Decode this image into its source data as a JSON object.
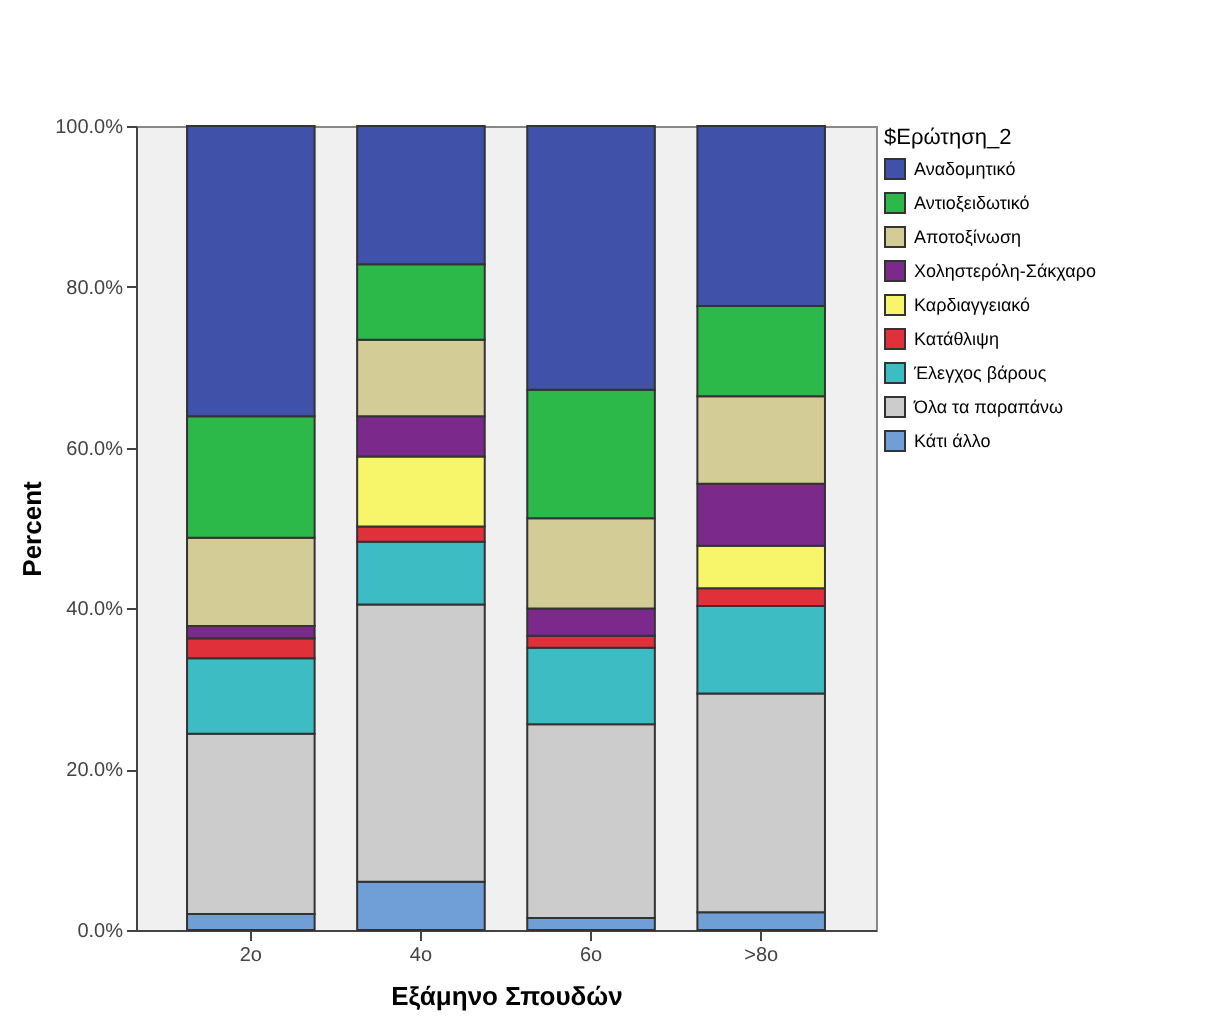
{
  "chart_data": {
    "type": "bar",
    "stacked": true,
    "xlabel": "Εξάμηνο Σπουδών",
    "ylabel": "Percent",
    "legend_title": "$Ερώτηση_2",
    "legend": "right",
    "grid": false,
    "categories": [
      "2ο",
      "4ο",
      "6ο",
      ">8ο"
    ],
    "ylim": [
      0,
      100
    ],
    "yticks": [
      {
        "value": 0,
        "label": "0.0%"
      },
      {
        "value": 20,
        "label": "20.0%"
      },
      {
        "value": 40,
        "label": "40.0%"
      },
      {
        "value": 60,
        "label": "60.0%"
      },
      {
        "value": 80,
        "label": "80.0%"
      },
      {
        "value": 100,
        "label": "100.0%"
      }
    ],
    "series": [
      {
        "name": "Κάτι άλλο",
        "color": "#6f9fd6",
        "values": [
          2,
          6,
          1.5,
          2.2
        ]
      },
      {
        "name": "Όλα τα παραπάνω",
        "color": "#cccccc",
        "values": [
          22.4,
          34.5,
          24.1,
          27.2
        ]
      },
      {
        "name": "Έλεγχος βάρους",
        "color": "#3dbcc4",
        "values": [
          9.4,
          7.8,
          9.5,
          10.9
        ]
      },
      {
        "name": "Κατάθλιψη",
        "color": "#e0303a",
        "values": [
          2.5,
          1.9,
          1.5,
          2.2
        ]
      },
      {
        "name": "Καρδιαγγειακό",
        "color": "#f7f56a",
        "values": [
          0,
          8.7,
          0,
          5.3
        ]
      },
      {
        "name": "Χοληστερόλη-Σάκχαρο",
        "color": "#7b2a8c",
        "values": [
          1.5,
          5,
          3.4,
          7.7
        ]
      },
      {
        "name": "Αποτοξίνωση",
        "color": "#d4cc96",
        "values": [
          11,
          9.5,
          11.2,
          10.9
        ]
      },
      {
        "name": "Αντιοξειδωτικό",
        "color": "#2db84a",
        "values": [
          15.1,
          9.4,
          16,
          11.2
        ]
      },
      {
        "name": "Αναδομητικό",
        "color": "#3f51a8",
        "values": [
          36.1,
          17.2,
          32.8,
          22.4
        ]
      }
    ]
  }
}
